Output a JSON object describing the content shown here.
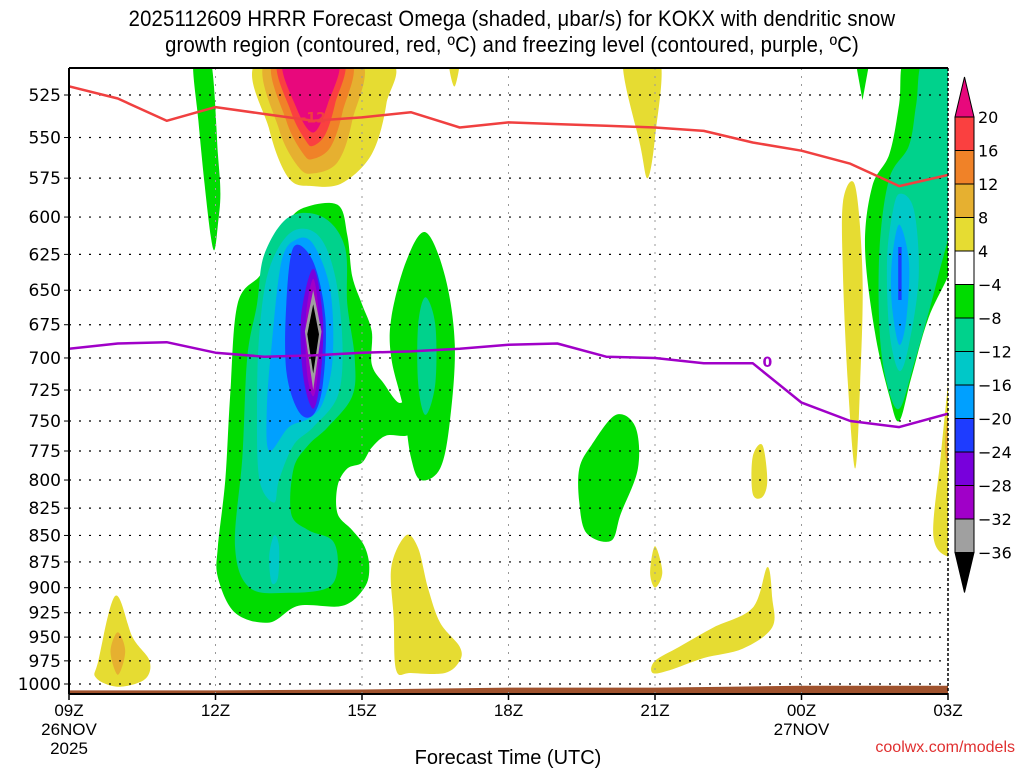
{
  "chart_data": {
    "type": "heatmap",
    "title_lines": [
      "2025112609 HRRR Forecast Omega (shaded, μbar/s) for KOKX with dendritic snow",
      "growth region (contoured, red, ºC) and freezing level (contoured, purple, ºC)"
    ],
    "xlabel": "Forecast Time (UTC)",
    "ylabel": "",
    "credit": "coolwx.com/models",
    "x_range_hours": [
      0,
      18
    ],
    "y_range_hpa": [
      510,
      1010
    ],
    "y_scale": "log-pressure (inverted)",
    "grid": true,
    "x_ticks": [
      {
        "hour": 0,
        "lines": [
          "09Z",
          "26NOV",
          "2025"
        ]
      },
      {
        "hour": 3,
        "lines": [
          "12Z"
        ]
      },
      {
        "hour": 6,
        "lines": [
          "15Z"
        ]
      },
      {
        "hour": 9,
        "lines": [
          "18Z"
        ]
      },
      {
        "hour": 12,
        "lines": [
          "21Z"
        ]
      },
      {
        "hour": 15,
        "lines": [
          "00Z",
          "27NOV"
        ]
      },
      {
        "hour": 18,
        "lines": [
          "03Z"
        ]
      }
    ],
    "y_ticks": [
      525,
      550,
      575,
      600,
      625,
      650,
      675,
      700,
      725,
      750,
      775,
      800,
      825,
      850,
      875,
      900,
      925,
      950,
      975,
      1000
    ],
    "colorbar": {
      "placement": "right",
      "levels": [
        -36,
        -32,
        -28,
        -24,
        -20,
        -16,
        -12,
        -8,
        -4,
        4,
        8,
        12,
        16,
        20
      ],
      "tick_labels": [
        "20",
        "16",
        "12",
        "8",
        "4",
        "−4",
        "−8",
        "−12",
        "−16",
        "−20",
        "−24",
        "−28",
        "−32",
        "−36"
      ],
      "bins": [
        {
          "range": ">20",
          "color": "#e8087c"
        },
        {
          "range": "16 to 20",
          "color": "#fa4040"
        },
        {
          "range": "12 to 16",
          "color": "#f08228"
        },
        {
          "range": "8 to 12",
          "color": "#e6b030"
        },
        {
          "range": "4 to 8",
          "color": "#e6dc32"
        },
        {
          "range": "-4 to 4",
          "color": "#ffffff"
        },
        {
          "range": "-8 to -4",
          "color": "#00dc00"
        },
        {
          "range": "-12 to -8",
          "color": "#00d28c"
        },
        {
          "range": "-16 to -12",
          "color": "#00c8c8"
        },
        {
          "range": "-20 to -16",
          "color": "#00a0ff"
        },
        {
          "range": "-24 to -20",
          "color": "#1e3cff"
        },
        {
          "range": "-28 to -24",
          "color": "#7800dc"
        },
        {
          "range": "-32 to -28",
          "color": "#a000c8"
        },
        {
          "range": "-36 to -32",
          "color": "#a0a0a0"
        },
        {
          "range": "<-36",
          "color": "#000000"
        }
      ]
    },
    "series": [
      {
        "name": "dendritic snow growth region (-12 ºC)",
        "color": "#f04040",
        "label": "-12",
        "points": [
          [
            0,
            520
          ],
          [
            1,
            527
          ],
          [
            2,
            540
          ],
          [
            3,
            532
          ],
          [
            4,
            536
          ],
          [
            5,
            540
          ],
          [
            6,
            538
          ],
          [
            7,
            535
          ],
          [
            8,
            544
          ],
          [
            9,
            541
          ],
          [
            10,
            542
          ],
          [
            11,
            543
          ],
          [
            12,
            544
          ],
          [
            13,
            546
          ],
          [
            14,
            553
          ],
          [
            15,
            558
          ],
          [
            16,
            566
          ],
          [
            17,
            580
          ],
          [
            18,
            573
          ]
        ]
      },
      {
        "name": "freezing level (0 ºC)",
        "color": "#a000c8",
        "label": "0",
        "points": [
          [
            0,
            693
          ],
          [
            1,
            689
          ],
          [
            2,
            688
          ],
          [
            3,
            696
          ],
          [
            4,
            699
          ],
          [
            5,
            698
          ],
          [
            6,
            696
          ],
          [
            7,
            695
          ],
          [
            8,
            693
          ],
          [
            9,
            690
          ],
          [
            10,
            689
          ],
          [
            11,
            699
          ],
          [
            12,
            700
          ],
          [
            13,
            704
          ],
          [
            14,
            704
          ],
          [
            15,
            735
          ],
          [
            16,
            750
          ],
          [
            17,
            755
          ],
          [
            18,
            744
          ]
        ]
      }
    ],
    "terrain_color": "#a0522d",
    "omega_features": [
      {
        "desc": "strong ascent core",
        "center_hour": 5,
        "center_hpa": 675,
        "min_value": "< -36"
      },
      {
        "desc": "descent max aloft",
        "center_hour": 5,
        "center_hpa": 520,
        "max_value": "> 20"
      },
      {
        "desc": "secondary ascent",
        "center_hour": 17.8,
        "center_hpa": 630,
        "min_value": "-24"
      },
      {
        "desc": "weak descent low levels",
        "center_hour": 1,
        "center_hpa": 965,
        "max_value": "8 to 12"
      }
    ]
  }
}
